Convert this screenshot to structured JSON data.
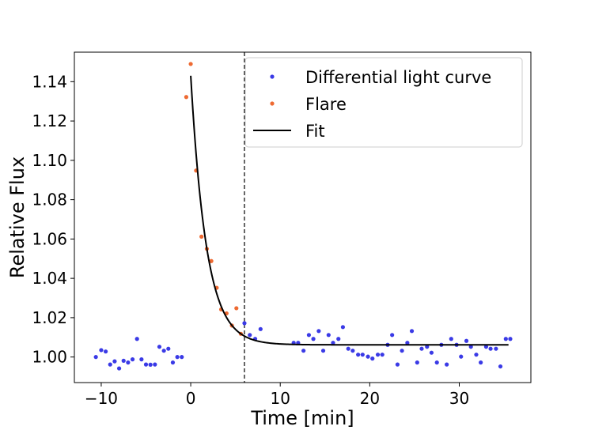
{
  "chart_data": {
    "type": "scatter",
    "title": "",
    "xlabel": "Time [min]",
    "ylabel": "Relative Flux",
    "xlim": [
      -13,
      38
    ],
    "ylim": [
      0.987,
      1.155
    ],
    "xticks": [
      -10,
      0,
      10,
      20,
      30
    ],
    "xtick_labels": [
      "−10",
      "0",
      "10",
      "20",
      "30"
    ],
    "yticks": [
      1.0,
      1.02,
      1.04,
      1.06,
      1.08,
      1.1,
      1.12,
      1.14
    ],
    "ytick_labels": [
      "1.00",
      "1.02",
      "1.04",
      "1.06",
      "1.08",
      "1.10",
      "1.12",
      "1.14"
    ],
    "legend_position": "top-right",
    "vline": {
      "x": 6.0,
      "style": "dashed",
      "color": "#000000"
    },
    "series": [
      {
        "name": "Differential light curve",
        "kind": "points",
        "color": "#3a3ae6",
        "x": [
          -10.6,
          -10.0,
          -9.5,
          -9.0,
          -8.5,
          -8.0,
          -7.5,
          -7.0,
          -6.5,
          -6.0,
          -5.5,
          -5.0,
          -4.5,
          -4.0,
          -3.5,
          -3.0,
          -2.5,
          -2.0,
          -1.5,
          -1.0,
          6.0,
          6.6,
          7.2,
          7.8,
          11.5,
          12.0,
          12.6,
          13.2,
          13.7,
          14.3,
          14.8,
          15.4,
          15.9,
          16.5,
          17.0,
          17.6,
          18.1,
          18.7,
          19.2,
          19.8,
          20.3,
          20.9,
          21.4,
          22.0,
          22.5,
          23.1,
          23.6,
          24.2,
          24.7,
          25.3,
          25.8,
          26.4,
          26.9,
          27.5,
          28.0,
          28.6,
          29.1,
          29.7,
          30.2,
          30.8,
          31.3,
          31.9,
          32.4,
          33.0,
          33.5,
          34.1,
          34.6,
          35.2,
          35.7
        ],
        "y": [
          1.0,
          1.0035,
          1.0028,
          0.9962,
          0.9978,
          0.9942,
          0.9981,
          0.9972,
          0.9988,
          1.0092,
          0.9988,
          0.9962,
          0.9961,
          0.9962,
          1.0052,
          1.0032,
          1.0042,
          0.9972,
          1.0,
          1.0,
          1.0172,
          1.0112,
          1.0092,
          1.0142,
          1.0072,
          1.0072,
          1.0032,
          1.0112,
          1.0092,
          1.0132,
          1.0032,
          1.0112,
          1.0072,
          1.0092,
          1.0152,
          1.0042,
          1.0032,
          1.0012,
          1.0012,
          1.0002,
          0.9992,
          1.0012,
          1.0012,
          1.0062,
          1.0112,
          0.9962,
          1.0032,
          1.0072,
          1.0132,
          0.9972,
          1.0042,
          1.0052,
          1.0022,
          0.9972,
          1.0062,
          0.9962,
          1.0092,
          1.0062,
          1.0002,
          1.0082,
          1.0052,
          1.0012,
          0.9972,
          1.0052,
          1.0042,
          1.0042,
          0.9952,
          1.0092,
          1.0092
        ]
      },
      {
        "name": "Flare",
        "kind": "points",
        "color": "#ee6a32",
        "x": [
          -0.5,
          0.0,
          0.6,
          1.2,
          1.8,
          2.3,
          2.9,
          3.4,
          4.0,
          4.6,
          5.1,
          5.6
        ],
        "y": [
          1.1322,
          1.149,
          1.0948,
          1.0612,
          1.055,
          1.0488,
          1.0352,
          1.0242,
          1.0222,
          1.016,
          1.0248,
          1.0118
        ]
      },
      {
        "name": "Fit",
        "kind": "line",
        "color": "#000000",
        "model": {
          "x_start": 0.0,
          "x_end": 35.5,
          "baseline": 1.0062,
          "amplitude": 0.1368,
          "tau": 1.75
        }
      }
    ]
  }
}
